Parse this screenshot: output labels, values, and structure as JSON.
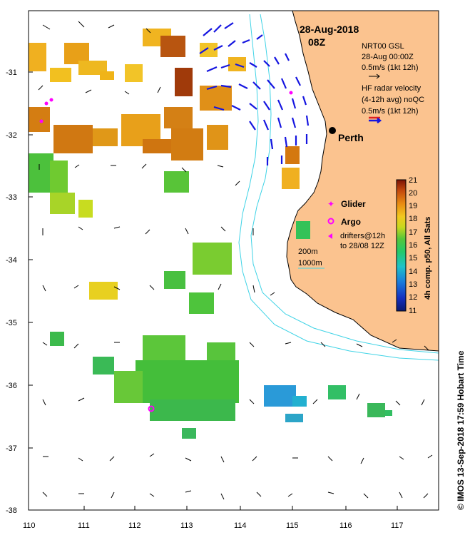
{
  "map": {
    "date_title": "28-Aug-2018",
    "time_title": "08Z",
    "city_label": "Perth",
    "lat_ticks": [
      "-31",
      "-32",
      "-33",
      "-34",
      "-35",
      "-36",
      "-37",
      "-38"
    ],
    "lon_ticks": [
      "110",
      "111",
      "112",
      "113",
      "114",
      "115",
      "116",
      "117"
    ],
    "colors": {
      "land": "#fbc38f",
      "isobath": "#3fd3e6",
      "radar_arrow": "#1515e0",
      "glider": "#ff00ff"
    }
  },
  "legend": {
    "gsl_line1": "NRT00 GSL",
    "gsl_line2": "28-Aug 00:00Z",
    "gsl_line3": "0.5m/s (1kt 12h)",
    "hf_line1": "HF radar velocity",
    "hf_line2": "(4-12h avg) noQC",
    "hf_line3": "0.5m/s (1kt 12h)",
    "glider": "Glider",
    "argo": "Argo",
    "drifters_line1": "drifters@12h",
    "drifters_line2": "to 28/08 12Z",
    "isobath_200": "200m",
    "isobath_1000": "1000m"
  },
  "colorbar": {
    "label": "4h comp. p50, All Sats",
    "ticks": [
      "21",
      "20",
      "19",
      "18",
      "17",
      "16",
      "15",
      "14",
      "13",
      "12",
      "11"
    ],
    "min": 11,
    "max": 21
  },
  "credit": "© IMOS 13-Sep-2018 17:59 Hobart Time"
}
